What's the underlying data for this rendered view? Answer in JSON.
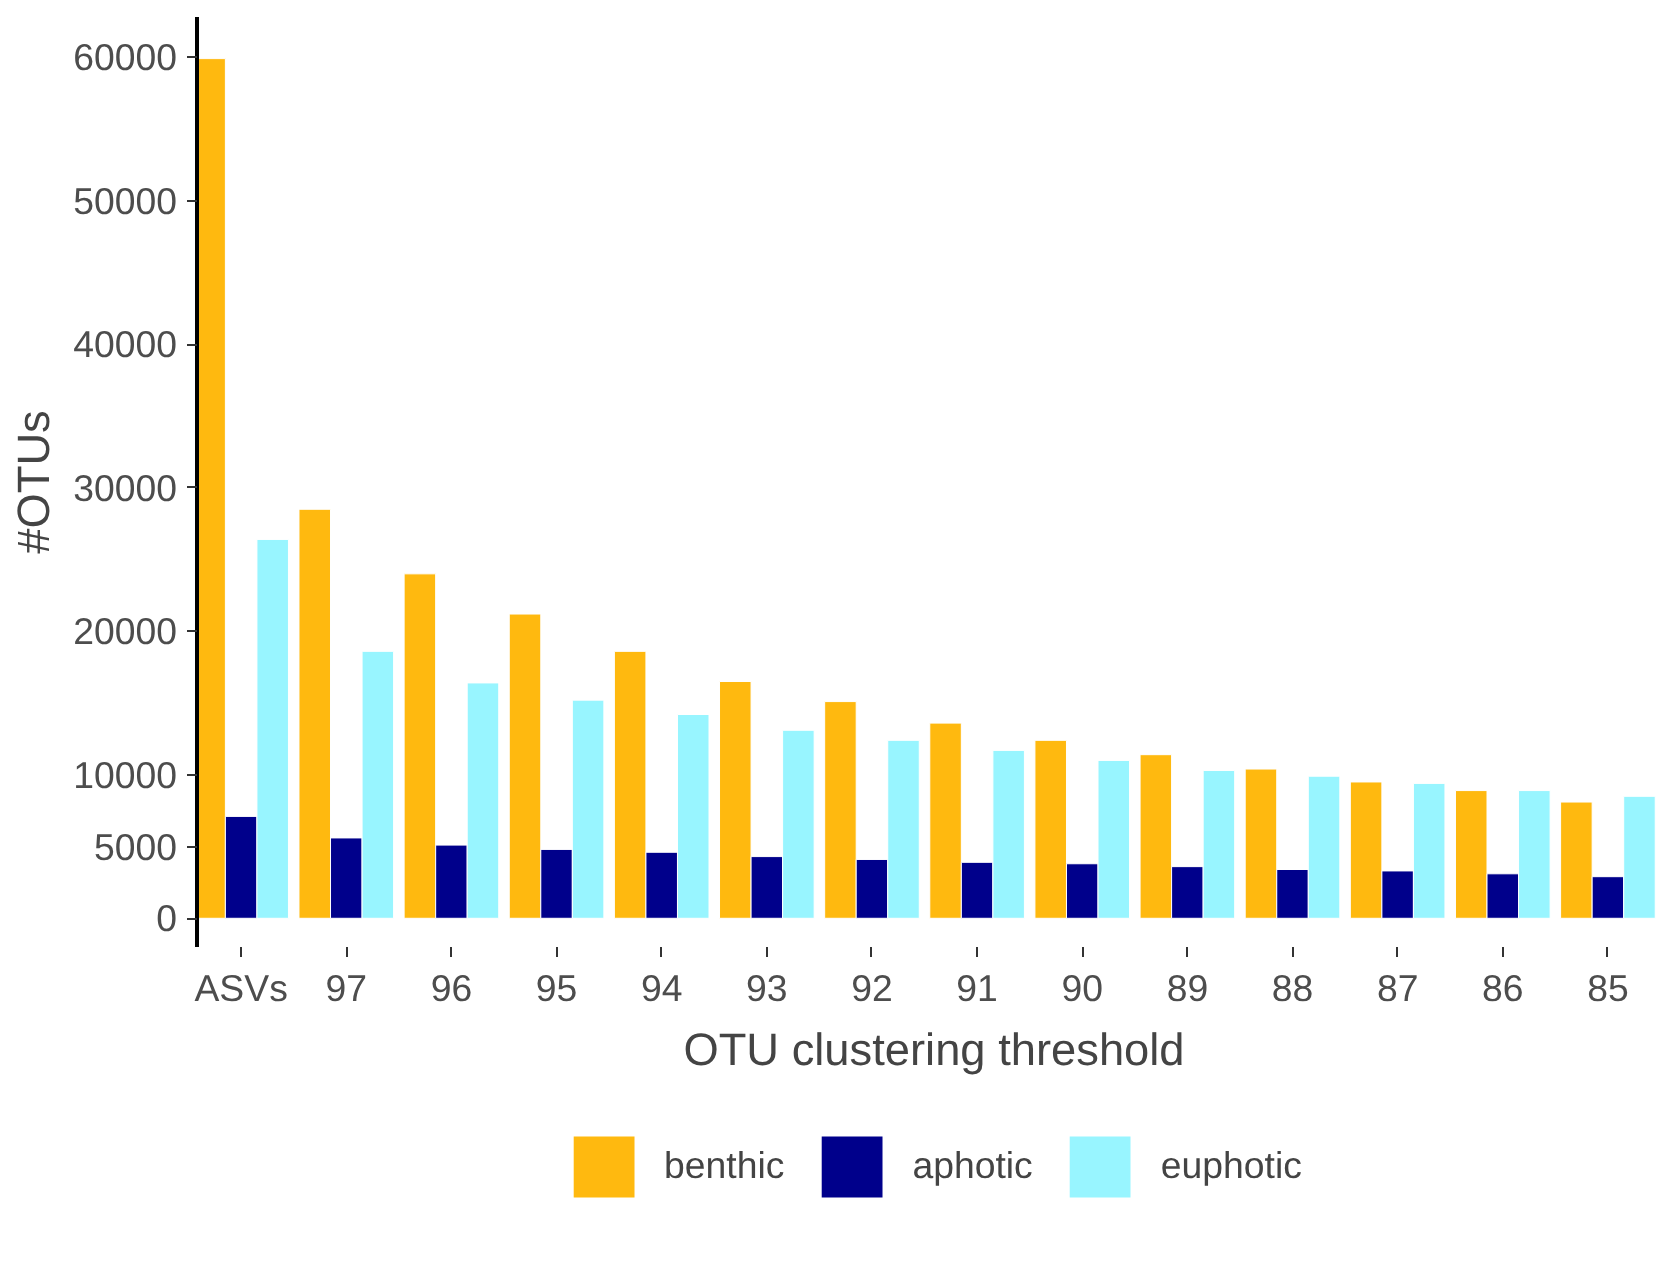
{
  "chart_data": {
    "type": "bar",
    "xlabel": "OTU clustering threshold",
    "ylabel": "#OTUs",
    "categories": [
      "ASVs",
      "97",
      "96",
      "95",
      "94",
      "93",
      "92",
      "91",
      "90",
      "89",
      "88",
      "87",
      "86",
      "85"
    ],
    "series": [
      {
        "name": "benthic",
        "color": "#ffb90f",
        "values": [
          59900,
          28500,
          24000,
          21200,
          18600,
          16500,
          15100,
          13600,
          12400,
          11400,
          10400,
          9500,
          8900,
          8100
        ]
      },
      {
        "name": "aphotic",
        "color": "#00008b",
        "values": [
          7100,
          5600,
          5100,
          4800,
          4600,
          4300,
          4100,
          3900,
          3800,
          3600,
          3400,
          3300,
          3100,
          2900
        ]
      },
      {
        "name": "euphotic",
        "color": "#98f5ff",
        "values": [
          26400,
          18600,
          16400,
          15200,
          14200,
          13100,
          12400,
          11700,
          11000,
          10300,
          9900,
          9400,
          8900,
          8500
        ]
      }
    ],
    "ylim": [
      -2000,
      62800
    ],
    "yticks": [
      0,
      5000,
      10000,
      20000,
      30000,
      40000,
      50000,
      60000
    ],
    "grid": false,
    "legend": "bottom"
  }
}
